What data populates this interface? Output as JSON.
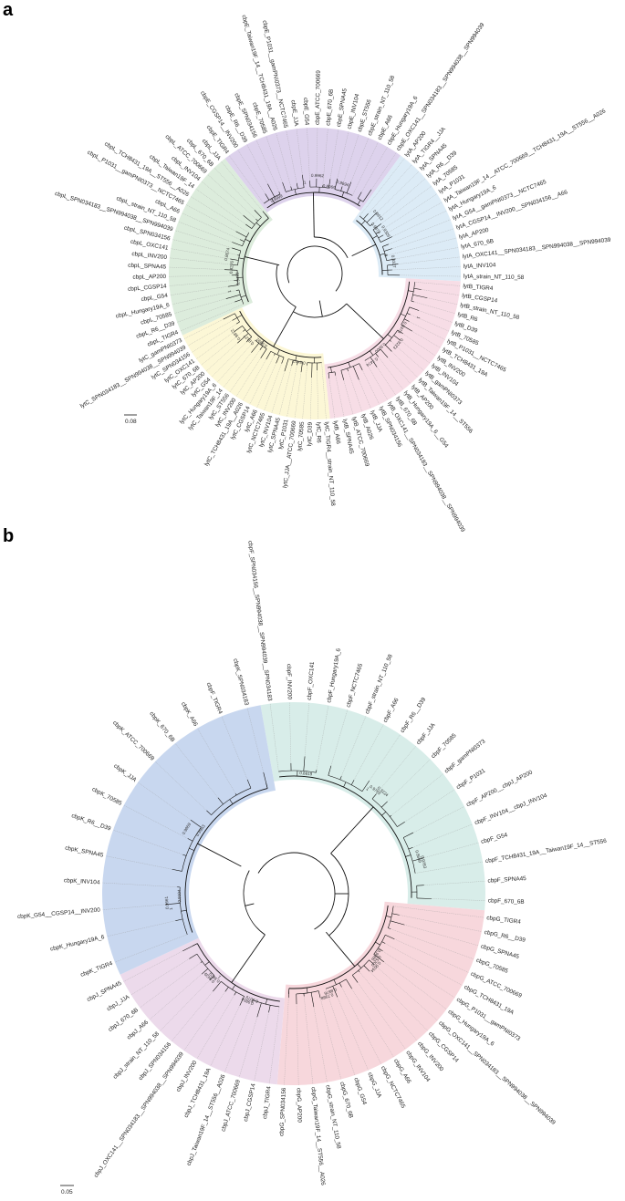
{
  "panels": [
    {
      "letter": "a",
      "scale_label": "0.08",
      "clades": [
        {
          "name": "cbpE",
          "color": "#ddd2ec",
          "labels": [
            "cbpE_TIGR4",
            "cbpE_CGSP14__INV200",
            "cbpE_R6__D39",
            "cbpE_SPN034156",
            "cbpE_70585",
            "cbpE_Taiwan19F_14__TCH8431_19A__A026",
            "cbpE_P1031__gamPNI0373__NCTC7465",
            "cbpE_JJA",
            "cbpE_G54",
            "cbpE_ATCC_700669",
            "cbpE_670_6B",
            "cbpE_SPNA45",
            "cbpE_INV104",
            "cbpE_ST556",
            "cbpE_strain_NT_110_58",
            "cbpE_A66",
            "cbpE_Hungary19A_6",
            "cbpE_OXC141__SPN034183__SPN994038__SPN994039"
          ]
        },
        {
          "name": "lytA",
          "color": "#dcebf6",
          "labels": [
            "lytA_AP200",
            "lytA_TIGR4__JJA",
            "lytA_SPNA45",
            "lytA_R6__D39",
            "lytA_70585",
            "lytA_P1031",
            "lytA_Taiwan19F_14__ATCC_700669__TCH8431_19A__ST556__A026",
            "lytA_Hungary19A_6",
            "lytA_G54__gamPNI0373__NCTC7465",
            "lytA_CGSP14__INV200__SPN034156__A66",
            "lytA_AP200",
            "lytA_670_6B",
            "lytA_OXC141__SPN034183__SPN994038__SPN994039",
            "lytA_INV104",
            "lytA_strain_NT_110_58"
          ]
        },
        {
          "name": "lytB",
          "color": "#f7dde6",
          "labels": [
            "lytB_TIGR4",
            "lytB_CGSP14",
            "lytB_strain_NT_110_58",
            "lytB_R6",
            "lytB_D39",
            "lytB_70585",
            "lytB_P1031__NCTC7465",
            "lytB_TCH8431_19A",
            "lytB_INV200",
            "lytB_INV104",
            "lytB_gamPNI0373",
            "lytB_Taiwan19F_14__ST556",
            "lytB_AP200",
            "lytB_Hungary19A_6__G54",
            "lytB_670_6B",
            "lytB_OXC141__SPN034183__SPN994038__SPN994039",
            "lytB_SPN034156",
            "lytB_JJA",
            "lytB_A026",
            "lytB_ATCC_700669",
            "lytB_SPNA45",
            "lytB_A66"
          ]
        },
        {
          "name": "lytC",
          "color": "#fcf7d6",
          "labels": [
            "lytC_TIGR4__strain_NT_110_58",
            "lytC_R6",
            "lytC_D39",
            "lytC_70585",
            "lytC_JJA__ATCC_700669",
            "lytC_P1031",
            "lytC_SPNA45",
            "lytC_INV104",
            "lytC_NCTC7465",
            "lytC_A66",
            "lytC_CGSP14",
            "lytC_TCH8431_19A__A026",
            "lytC_INV200",
            "lytC_ST556",
            "lytC_Taiwan19F_14",
            "lytC_Hungary19A_6",
            "lytC_G54",
            "lytC_AP200",
            "lytC_670_6B",
            "lytC_OXC141",
            "lytC_SPN034156",
            "lytC_SPN034183__SPN994038__SPN994039",
            "lytC_gamPNI0373"
          ]
        },
        {
          "name": "cbpL",
          "color": "#dcecdc",
          "labels": [
            "cbpL_TIGR4",
            "cbpL_R6__D39",
            "cbpL_70585",
            "cbpL_Hungary19A_6",
            "cbpL_G54",
            "cbpL_CGSP14",
            "cbpL_AP200",
            "cbpL_SPNA45",
            "cbpL_INV200",
            "cbpL_OXC141",
            "cbpL_SPN034156",
            "cbpL_SPN034183__SPN994038__SPN994039",
            "cbpL_strain_NT_110_58",
            "cbpL_A66",
            "cbpL_P1031__gamPNI0373__NCTC7465",
            "cbpL_TCH8431_19A__ST556__A026",
            "cbpL_Taiwan19F_14",
            "cbpL_INV104",
            "cbpL_ATCC_700669",
            "cbpL_670_6B",
            "cbpL_JJA"
          ]
        }
      ],
      "bootstrap_values": [
        "0.8999",
        "0.9326",
        "0.7474",
        "0.5412",
        "0.8674",
        "0.9694",
        "0.9373",
        "0.5000",
        "0.9872",
        "0.8276",
        "0.8969",
        "0.9912",
        "0.9223",
        "0.8127",
        "0.9499",
        "0.9962",
        "0.8327",
        "0.9373",
        "0.9992",
        "1",
        "1",
        "1",
        "1"
      ]
    },
    {
      "letter": "b",
      "scale_label": "0.05",
      "clades": [
        {
          "name": "cbpF",
          "color": "#d8ede9",
          "labels": [
            "cbpF_SPN034156__SPN994038__SPN994039__SPN034183",
            "cbpF_INV200",
            "cbpF_OXC141",
            "cbpF_Hungary19A_6",
            "cbpF_NCTC7465",
            "cbpF_strain_NT_110_58",
            "cbpF_A66",
            "cbpF_R6__D39",
            "cbpF_JJA",
            "cbpF_70585",
            "cbpF_gamPNI0373",
            "cbpF_P1031",
            "cbpF_AP200__cbpJ_AP200",
            "cbpF_INV104__cbpJ_INV104",
            "cbpF_G54",
            "cbpF_TCH8431_19A__Taiwan19F_14__ST556",
            "cbpF_SPNA45",
            "cbpF_670_6B"
          ]
        },
        {
          "name": "cbpG",
          "color": "#f7d7dc",
          "labels": [
            "cbpG_TIGR4",
            "cbpG_R6__D39",
            "cbpG_SPNA45",
            "cbpG_70585",
            "cbpG_ATCC_700669",
            "cbpG_TCH8431_19A",
            "cbpG_P1031__gamPNI0373",
            "cbpG_Hungary19A_6",
            "cbpG_OXC141__SPN034183__SPN994038__SPN994039",
            "cbpG_CGSP14",
            "cbpG_INV200",
            "cbpG_INV104",
            "cbpG_A66",
            "cbpG_NCTC7465",
            "cbpG_JJA",
            "cbpG_G54",
            "cbpG_670_6B",
            "cbpG_strain_NT_110_58",
            "cbpG_Taiwan19F_14__ST556__A026",
            "cbpG_AP200",
            "cbpG_SPN034156"
          ]
        },
        {
          "name": "cbpJ",
          "color": "#ecdaeb",
          "labels": [
            "cbpJ_TIGR4",
            "cbpJ_CGSP14",
            "cbpJ_ATCC_700669",
            "cbpJ_Taiwan19F_14__ST556__A026",
            "cbpJ_TCH8431_19A",
            "cbpJ_INV200",
            "cbpJ_OXC141__SPN034183__SPN994038__SPN994039",
            "cbpJ_SPN034156",
            "cbpJ_strain_NT_110_58",
            "cbpJ_A66",
            "cbpJ_670_6B",
            "cbpJ_JJA",
            "cbpJ_SPNA45"
          ]
        },
        {
          "name": "cbpK",
          "color": "#c8d7ef",
          "labels": [
            "cbpK_TIGR4",
            "cbpK_Hungary19A_6",
            "cbpK_G54__CGSP14__INV200",
            "cbpK_INV104",
            "cbpK_SPNA45",
            "cbpK_R6__D39",
            "cbpK_70585",
            "cbpK_JJA",
            "cbpK_ATCC_700669",
            "cbpK_670_6B",
            "cbpK_A66",
            "cbpF_TIGR4",
            "cbpK_SPN034183"
          ]
        }
      ],
      "bootstrap_values": [
        "0.8819",
        "0.9034",
        "0.9439",
        "0.9104",
        "0.3224",
        "0.7988",
        "0.9864",
        "0.9963",
        "0.9783",
        "0.5200",
        "0.9879",
        "0.9661",
        "0.9763",
        "0.8876",
        "0.9079",
        "0.9869",
        "0.8669",
        "0.9086",
        "1",
        "1",
        "1"
      ]
    }
  ]
}
